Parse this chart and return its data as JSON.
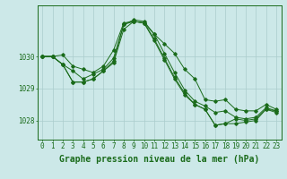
{
  "bg_color": "#cce8e8",
  "line_color": "#1a6b1a",
  "grid_color": "#aacccc",
  "xlabel": "Graphe pression niveau de la mer (hPa)",
  "xlabel_fontsize": 7,
  "tick_fontsize": 5.5,
  "ytick_values": [
    1028,
    1029,
    1030
  ],
  "ylim": [
    1027.4,
    1031.6
  ],
  "xlim": [
    -0.5,
    23.5
  ],
  "xticks": [
    0,
    1,
    2,
    3,
    4,
    5,
    6,
    7,
    8,
    9,
    10,
    11,
    12,
    13,
    14,
    15,
    16,
    17,
    18,
    19,
    20,
    21,
    22,
    23
  ],
  "series": [
    [
      1030.0,
      1030.0,
      1030.05,
      1029.7,
      1029.6,
      1029.5,
      1029.7,
      1030.2,
      1031.05,
      1031.1,
      1031.05,
      1030.7,
      1030.4,
      1030.1,
      1029.6,
      1029.3,
      1028.65,
      1028.6,
      1028.65,
      1028.35,
      1028.3,
      1028.3,
      1028.5,
      1028.35
    ],
    [
      1030.0,
      1030.0,
      1029.75,
      1029.2,
      1029.2,
      1029.3,
      1029.55,
      1029.8,
      1030.85,
      1031.1,
      1031.05,
      1030.5,
      1029.9,
      1029.3,
      1028.8,
      1028.5,
      1028.35,
      1027.85,
      1027.9,
      1028.05,
      1028.0,
      1028.05,
      1028.35,
      1028.3
    ],
    [
      1030.0,
      1030.0,
      1029.75,
      1029.2,
      1029.2,
      1029.3,
      1029.55,
      1029.85,
      1031.0,
      1031.1,
      1031.05,
      1030.55,
      1029.95,
      1029.35,
      1028.85,
      1028.5,
      1028.35,
      1027.85,
      1027.9,
      1027.9,
      1027.95,
      1028.0,
      1028.35,
      1028.25
    ],
    [
      1030.0,
      1030.0,
      1029.75,
      1029.55,
      1029.3,
      1029.45,
      1029.6,
      1029.95,
      1031.0,
      1031.15,
      1031.1,
      1030.7,
      1030.1,
      1029.5,
      1028.95,
      1028.6,
      1028.45,
      1028.25,
      1028.3,
      1028.1,
      1028.05,
      1028.1,
      1028.4,
      1028.3
    ]
  ]
}
